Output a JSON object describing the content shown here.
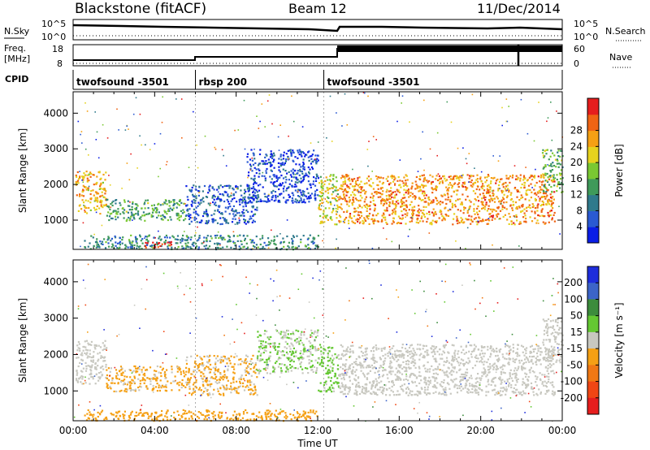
{
  "header": {
    "station": "Blackstone (fitACF)",
    "beam": "Beam 12",
    "date": "11/Dec/2014"
  },
  "summary": {
    "nsky_label": "N.Sky",
    "nsky_ticks": [
      "10^5",
      "10^0"
    ],
    "nsearch_label": "N.Search",
    "nsearch_ticks": [
      "10^5",
      "10^0"
    ],
    "freq_label": "Freq.",
    "freq_unit": "[MHz]",
    "freq_ticks": [
      "18",
      "8"
    ],
    "nave_label": "Nave",
    "nave_ticks": [
      "60",
      "0"
    ],
    "cpid_label": "CPID",
    "cpid_segments": [
      {
        "name": "twofsound -3501",
        "start": 0,
        "end": 6
      },
      {
        "name": "rbsp 200",
        "start": 6,
        "end": 12.3
      },
      {
        "name": "twofsound -3501",
        "start": 12.3,
        "end": 24
      }
    ]
  },
  "chart_data": [
    {
      "type": "heatmap",
      "title": "",
      "xlabel": "",
      "ylabel": "Slant Range [km]",
      "xlim": [
        0,
        24
      ],
      "ylim": [
        180,
        4600
      ],
      "yticks": [
        "1000",
        "2000",
        "3000",
        "4000"
      ],
      "colorbar": {
        "label": "Power [dB]",
        "ticks": [
          "4",
          "8",
          "12",
          "16",
          "20",
          "24",
          "28"
        ],
        "range": [
          0,
          32
        ],
        "colors": [
          "#0a1ee6",
          "#2a5ad2",
          "#2f7a8c",
          "#3f9a5a",
          "#7ac832",
          "#e6d21e",
          "#f5a014",
          "#f06414",
          "#e61e1e"
        ]
      },
      "regions": [
        {
          "t0": 0.1,
          "t1": 1.6,
          "r0": 1200,
          "r1": 2400,
          "value": 22
        },
        {
          "t0": 1.6,
          "t1": 5.5,
          "r0": 1000,
          "r1": 1600,
          "value": 13
        },
        {
          "t0": 5.5,
          "t1": 9.0,
          "r0": 900,
          "r1": 2000,
          "value": 6
        },
        {
          "t0": 8.5,
          "t1": 12.0,
          "r0": 1500,
          "r1": 3000,
          "value": 4
        },
        {
          "t0": 12.0,
          "t1": 13.0,
          "r0": 900,
          "r1": 2300,
          "value": 18
        },
        {
          "t0": 13.0,
          "t1": 23.6,
          "r0": 900,
          "r1": 2300,
          "value": 24
        },
        {
          "t0": 0.5,
          "t1": 12.0,
          "r0": 200,
          "r1": 600,
          "value": 10
        },
        {
          "t0": 3.5,
          "t1": 4.8,
          "r0": 250,
          "r1": 450,
          "value": 30
        },
        {
          "t0": 23.0,
          "t1": 24.0,
          "r0": 1800,
          "r1": 3000,
          "value": 14
        }
      ]
    },
    {
      "type": "heatmap",
      "title": "",
      "xlabel": "Time UT",
      "ylabel": "Slant Range [km]",
      "xlim": [
        0,
        24
      ],
      "ylim": [
        180,
        4600
      ],
      "xticks": [
        "00:00",
        "04:00",
        "08:00",
        "12:00",
        "16:00",
        "20:00",
        "00:00"
      ],
      "yticks": [
        "1000",
        "2000",
        "3000",
        "4000"
      ],
      "colorbar": {
        "label": "Velocity [m s⁻¹]",
        "ticks": [
          "200",
          "100",
          "50",
          "15",
          "-15",
          "-50",
          "-100",
          "-200"
        ],
        "range": [
          -250,
          250
        ],
        "colors": [
          "#1e2ddc",
          "#3c64c8",
          "#3c8c3c",
          "#64c832",
          "#c8c8c0",
          "#f5a014",
          "#f07814",
          "#f04614",
          "#e61e1e"
        ]
      },
      "regions": [
        {
          "t0": 0.1,
          "t1": 1.6,
          "r0": 1200,
          "r1": 2400,
          "value": 0
        },
        {
          "t0": 1.6,
          "t1": 5.5,
          "r0": 1000,
          "r1": 1700,
          "value": -40
        },
        {
          "t0": 5.5,
          "t1": 9.0,
          "r0": 900,
          "r1": 2000,
          "value": -35
        },
        {
          "t0": 9.0,
          "t1": 12.0,
          "r0": 1500,
          "r1": 2700,
          "value": 30
        },
        {
          "t0": 12.0,
          "t1": 13.0,
          "r0": 1000,
          "r1": 2300,
          "value": 40
        },
        {
          "t0": 13.0,
          "t1": 23.6,
          "r0": 900,
          "r1": 2300,
          "value": 0
        },
        {
          "t0": 0.5,
          "t1": 12.0,
          "r0": 200,
          "r1": 500,
          "value": -60
        },
        {
          "t0": 23.0,
          "t1": 24.0,
          "r0": 1800,
          "r1": 3000,
          "value": 5
        }
      ]
    }
  ]
}
